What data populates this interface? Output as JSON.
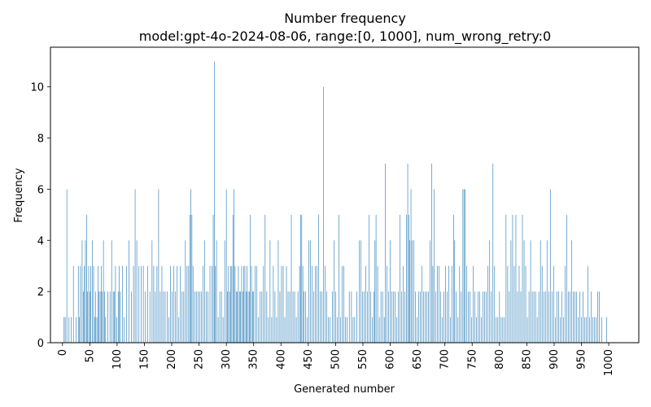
{
  "chart_data": {
    "type": "bar",
    "title": "Number frequency",
    "subtitle": "model:gpt-4o-2024-08-06, range:[0, 1000], num_wrong_retry:0",
    "xlabel": "Generated number",
    "ylabel": "Frequency",
    "xlim": [
      -22,
      1055
    ],
    "ylim": [
      0,
      11.55
    ],
    "xticks": [
      0,
      50,
      100,
      150,
      200,
      250,
      300,
      350,
      400,
      450,
      500,
      550,
      600,
      650,
      700,
      750,
      800,
      850,
      900,
      950,
      1000
    ],
    "yticks": [
      0,
      2,
      4,
      6,
      8,
      10
    ],
    "bar_color": "#1f77b4",
    "grid": false,
    "points": [
      [
        3,
        1
      ],
      [
        5,
        1
      ],
      [
        8,
        6
      ],
      [
        12,
        1
      ],
      [
        16,
        1
      ],
      [
        20,
        3
      ],
      [
        25,
        1
      ],
      [
        29,
        3
      ],
      [
        31,
        1
      ],
      [
        33,
        3
      ],
      [
        36,
        4
      ],
      [
        38,
        2
      ],
      [
        40,
        3
      ],
      [
        42,
        4
      ],
      [
        44,
        5
      ],
      [
        46,
        2
      ],
      [
        48,
        3
      ],
      [
        50,
        2
      ],
      [
        52,
        3
      ],
      [
        55,
        4
      ],
      [
        57,
        3
      ],
      [
        59,
        1
      ],
      [
        61,
        2
      ],
      [
        63,
        1
      ],
      [
        65,
        3
      ],
      [
        67,
        2
      ],
      [
        69,
        2
      ],
      [
        71,
        3
      ],
      [
        73,
        2
      ],
      [
        75,
        4
      ],
      [
        77,
        2
      ],
      [
        79,
        1
      ],
      [
        83,
        2
      ],
      [
        87,
        2
      ],
      [
        90,
        4
      ],
      [
        93,
        2
      ],
      [
        95,
        2
      ],
      [
        97,
        3
      ],
      [
        99,
        1
      ],
      [
        102,
        2
      ],
      [
        104,
        3
      ],
      [
        106,
        2
      ],
      [
        110,
        3
      ],
      [
        113,
        1
      ],
      [
        117,
        3
      ],
      [
        122,
        4
      ],
      [
        126,
        2
      ],
      [
        130,
        3
      ],
      [
        133,
        6
      ],
      [
        136,
        4
      ],
      [
        140,
        3
      ],
      [
        144,
        3
      ],
      [
        148,
        3
      ],
      [
        152,
        2
      ],
      [
        156,
        3
      ],
      [
        160,
        2
      ],
      [
        164,
        4
      ],
      [
        167,
        3
      ],
      [
        170,
        2
      ],
      [
        173,
        3
      ],
      [
        176,
        6
      ],
      [
        179,
        2
      ],
      [
        182,
        3
      ],
      [
        185,
        2
      ],
      [
        188,
        2
      ],
      [
        192,
        2
      ],
      [
        195,
        1
      ],
      [
        198,
        3
      ],
      [
        201,
        2
      ],
      [
        204,
        3
      ],
      [
        207,
        2
      ],
      [
        210,
        3
      ],
      [
        213,
        1
      ],
      [
        216,
        3
      ],
      [
        219,
        2
      ],
      [
        222,
        2
      ],
      [
        225,
        4
      ],
      [
        228,
        3
      ],
      [
        231,
        3
      ],
      [
        233,
        5
      ],
      [
        235,
        6
      ],
      [
        237,
        5
      ],
      [
        239,
        3
      ],
      [
        242,
        2
      ],
      [
        245,
        2
      ],
      [
        248,
        2
      ],
      [
        251,
        2
      ],
      [
        254,
        2
      ],
      [
        257,
        3
      ],
      [
        260,
        4
      ],
      [
        263,
        2
      ],
      [
        266,
        2
      ],
      [
        270,
        3
      ],
      [
        274,
        3
      ],
      [
        276,
        5
      ],
      [
        278,
        11
      ],
      [
        280,
        3
      ],
      [
        282,
        4
      ],
      [
        285,
        1
      ],
      [
        288,
        2
      ],
      [
        291,
        2
      ],
      [
        294,
        1
      ],
      [
        297,
        4
      ],
      [
        300,
        6
      ],
      [
        302,
        2
      ],
      [
        304,
        3
      ],
      [
        306,
        2
      ],
      [
        308,
        3
      ],
      [
        310,
        3
      ],
      [
        312,
        5
      ],
      [
        314,
        6
      ],
      [
        316,
        3
      ],
      [
        318,
        2
      ],
      [
        320,
        2
      ],
      [
        322,
        3
      ],
      [
        324,
        2
      ],
      [
        326,
        2
      ],
      [
        328,
        3
      ],
      [
        330,
        2
      ],
      [
        332,
        3
      ],
      [
        334,
        3
      ],
      [
        336,
        2
      ],
      [
        338,
        3
      ],
      [
        340,
        2
      ],
      [
        342,
        2
      ],
      [
        344,
        5
      ],
      [
        346,
        3
      ],
      [
        348,
        2
      ],
      [
        350,
        2
      ],
      [
        353,
        3
      ],
      [
        356,
        3
      ],
      [
        359,
        1
      ],
      [
        362,
        2
      ],
      [
        365,
        2
      ],
      [
        368,
        3
      ],
      [
        371,
        5
      ],
      [
        374,
        2
      ],
      [
        377,
        1
      ],
      [
        380,
        4
      ],
      [
        383,
        1
      ],
      [
        386,
        3
      ],
      [
        389,
        2
      ],
      [
        392,
        1
      ],
      [
        395,
        4
      ],
      [
        398,
        2
      ],
      [
        401,
        3
      ],
      [
        404,
        3
      ],
      [
        407,
        1
      ],
      [
        410,
        3
      ],
      [
        413,
        2
      ],
      [
        416,
        2
      ],
      [
        419,
        5
      ],
      [
        422,
        2
      ],
      [
        425,
        2
      ],
      [
        428,
        1
      ],
      [
        431,
        2
      ],
      [
        434,
        3
      ],
      [
        436,
        5
      ],
      [
        438,
        5
      ],
      [
        440,
        3
      ],
      [
        442,
        2
      ],
      [
        445,
        2
      ],
      [
        448,
        1
      ],
      [
        451,
        4
      ],
      [
        454,
        4
      ],
      [
        457,
        3
      ],
      [
        460,
        2
      ],
      [
        463,
        3
      ],
      [
        466,
        3
      ],
      [
        469,
        5
      ],
      [
        472,
        2
      ],
      [
        475,
        2
      ],
      [
        478,
        10
      ],
      [
        481,
        3
      ],
      [
        484,
        2
      ],
      [
        487,
        1
      ],
      [
        490,
        1
      ],
      [
        494,
        2
      ],
      [
        497,
        4
      ],
      [
        500,
        2
      ],
      [
        503,
        1
      ],
      [
        506,
        5
      ],
      [
        509,
        1
      ],
      [
        512,
        3
      ],
      [
        515,
        3
      ],
      [
        518,
        1
      ],
      [
        521,
        1
      ],
      [
        525,
        2
      ],
      [
        529,
        2
      ],
      [
        532,
        1
      ],
      [
        535,
        1
      ],
      [
        539,
        2
      ],
      [
        543,
        4
      ],
      [
        546,
        4
      ],
      [
        549,
        2
      ],
      [
        552,
        2
      ],
      [
        555,
        3
      ],
      [
        558,
        2
      ],
      [
        561,
        5
      ],
      [
        564,
        2
      ],
      [
        567,
        1
      ],
      [
        570,
        2
      ],
      [
        572,
        4
      ],
      [
        574,
        5
      ],
      [
        577,
        3
      ],
      [
        580,
        1
      ],
      [
        583,
        2
      ],
      [
        586,
        2
      ],
      [
        589,
        1
      ],
      [
        591,
        7
      ],
      [
        594,
        3
      ],
      [
        597,
        2
      ],
      [
        600,
        4
      ],
      [
        603,
        2
      ],
      [
        606,
        2
      ],
      [
        609,
        2
      ],
      [
        612,
        1
      ],
      [
        615,
        2
      ],
      [
        618,
        5
      ],
      [
        621,
        2
      ],
      [
        624,
        3
      ],
      [
        627,
        2
      ],
      [
        630,
        5
      ],
      [
        632,
        7
      ],
      [
        634,
        5
      ],
      [
        636,
        4
      ],
      [
        638,
        6
      ],
      [
        640,
        4
      ],
      [
        643,
        4
      ],
      [
        646,
        2
      ],
      [
        649,
        1
      ],
      [
        652,
        2
      ],
      [
        655,
        2
      ],
      [
        658,
        3
      ],
      [
        661,
        2
      ],
      [
        664,
        2
      ],
      [
        667,
        2
      ],
      [
        670,
        2
      ],
      [
        673,
        4
      ],
      [
        676,
        7
      ],
      [
        678,
        3
      ],
      [
        680,
        6
      ],
      [
        683,
        2
      ],
      [
        686,
        3
      ],
      [
        689,
        3
      ],
      [
        692,
        2
      ],
      [
        695,
        1
      ],
      [
        698,
        2
      ],
      [
        701,
        3
      ],
      [
        704,
        2
      ],
      [
        707,
        3
      ],
      [
        710,
        1
      ],
      [
        713,
        3
      ],
      [
        716,
        5
      ],
      [
        718,
        4
      ],
      [
        721,
        2
      ],
      [
        724,
        1
      ],
      [
        727,
        3
      ],
      [
        730,
        2
      ],
      [
        733,
        6
      ],
      [
        735,
        6
      ],
      [
        737,
        6
      ],
      [
        740,
        3
      ],
      [
        743,
        2
      ],
      [
        746,
        2
      ],
      [
        749,
        1
      ],
      [
        752,
        3
      ],
      [
        755,
        2
      ],
      [
        758,
        1
      ],
      [
        761,
        2
      ],
      [
        764,
        2
      ],
      [
        767,
        1
      ],
      [
        770,
        2
      ],
      [
        773,
        2
      ],
      [
        776,
        2
      ],
      [
        779,
        3
      ],
      [
        782,
        4
      ],
      [
        785,
        2
      ],
      [
        788,
        7
      ],
      [
        791,
        3
      ],
      [
        794,
        1
      ],
      [
        797,
        1
      ],
      [
        800,
        2
      ],
      [
        803,
        1
      ],
      [
        806,
        1
      ],
      [
        809,
        1
      ],
      [
        812,
        5
      ],
      [
        815,
        3
      ],
      [
        818,
        2
      ],
      [
        821,
        4
      ],
      [
        824,
        5
      ],
      [
        827,
        3
      ],
      [
        830,
        5
      ],
      [
        833,
        2
      ],
      [
        836,
        3
      ],
      [
        839,
        2
      ],
      [
        842,
        5
      ],
      [
        845,
        4
      ],
      [
        848,
        3
      ],
      [
        851,
        1
      ],
      [
        854,
        2
      ],
      [
        857,
        4
      ],
      [
        860,
        2
      ],
      [
        863,
        2
      ],
      [
        866,
        2
      ],
      [
        869,
        1
      ],
      [
        872,
        2
      ],
      [
        875,
        4
      ],
      [
        878,
        3
      ],
      [
        881,
        2
      ],
      [
        884,
        2
      ],
      [
        887,
        4
      ],
      [
        890,
        2
      ],
      [
        893,
        6
      ],
      [
        896,
        2
      ],
      [
        899,
        3
      ],
      [
        902,
        1
      ],
      [
        905,
        2
      ],
      [
        908,
        2
      ],
      [
        911,
        1
      ],
      [
        914,
        2
      ],
      [
        917,
        1
      ],
      [
        920,
        3
      ],
      [
        923,
        5
      ],
      [
        926,
        2
      ],
      [
        929,
        2
      ],
      [
        932,
        4
      ],
      [
        935,
        2
      ],
      [
        938,
        2
      ],
      [
        941,
        2
      ],
      [
        944,
        1
      ],
      [
        947,
        2
      ],
      [
        950,
        1
      ],
      [
        953,
        2
      ],
      [
        956,
        1
      ],
      [
        959,
        1
      ],
      [
        962,
        3
      ],
      [
        965,
        1
      ],
      [
        968,
        2
      ],
      [
        971,
        1
      ],
      [
        974,
        1
      ],
      [
        977,
        1
      ],
      [
        980,
        2
      ],
      [
        983,
        2
      ],
      [
        987,
        1
      ],
      [
        996,
        1
      ]
    ]
  }
}
